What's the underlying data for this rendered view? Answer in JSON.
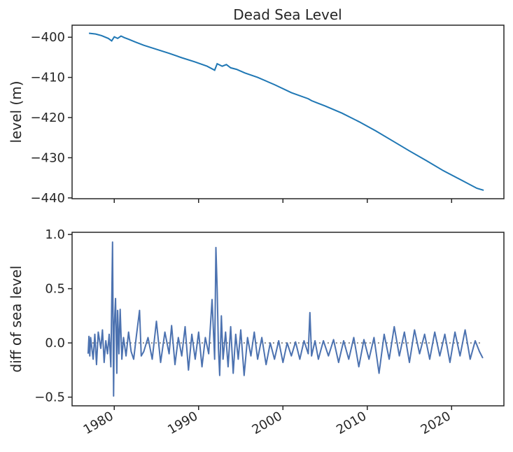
{
  "chart_data": [
    {
      "type": "line",
      "title": "Dead Sea Level",
      "xlabel": "",
      "ylabel": "level (m)",
      "xlim": [
        1975.0,
        2026.2
      ],
      "ylim": [
        -440.2,
        -397.0
      ],
      "yticks": [
        -440,
        -430,
        -420,
        -410,
        -400
      ],
      "grid": false,
      "color": "#1f77b4",
      "x": [
        1977.0,
        1977.8,
        1978.5,
        1979.3,
        1979.7,
        1980.0,
        1980.4,
        1980.8,
        1981.2,
        1981.7,
        1982.5,
        1983.5,
        1985.0,
        1986.5,
        1988.0,
        1989.5,
        1991.0,
        1991.9,
        1992.2,
        1992.8,
        1993.3,
        1993.8,
        1994.5,
        1995.5,
        1997.0,
        1999.0,
        2001.0,
        2003.0,
        2003.4,
        2004.0,
        2005.0,
        2007.0,
        2009.0,
        2011.0,
        2013.0,
        2015.0,
        2017.0,
        2019.0,
        2021.0,
        2023.0,
        2023.8
      ],
      "y": [
        -399.0,
        -399.2,
        -399.6,
        -400.3,
        -400.9,
        -399.9,
        -400.3,
        -399.7,
        -400.1,
        -400.5,
        -401.2,
        -402.0,
        -403.0,
        -404.0,
        -405.1,
        -406.1,
        -407.2,
        -408.2,
        -406.6,
        -407.2,
        -406.8,
        -407.6,
        -408.0,
        -408.9,
        -410.0,
        -411.8,
        -413.8,
        -415.3,
        -415.8,
        -416.3,
        -417.1,
        -418.9,
        -421.0,
        -423.3,
        -425.8,
        -428.3,
        -430.7,
        -433.2,
        -435.4,
        -437.6,
        -438.1
      ]
    },
    {
      "type": "line",
      "title": "",
      "xlabel": "",
      "ylabel": "diff of sea level",
      "xlim": [
        1975.0,
        2026.2
      ],
      "ylim": [
        -0.58,
        1.02
      ],
      "yticks": [
        -0.5,
        0.0,
        0.5,
        1.0
      ],
      "xticks": [
        "1980",
        "1990",
        "2000",
        "2010",
        "2020"
      ],
      "x_tick_values": [
        1980,
        1990,
        2000,
        2010,
        2020
      ],
      "grid": false,
      "color": "#4c72b0",
      "reference_line": {
        "y": 0.0,
        "style": "dotted",
        "color": "#666666"
      },
      "x": [
        1976.9,
        1977.0,
        1977.1,
        1977.2,
        1977.5,
        1977.7,
        1977.9,
        1978.1,
        1978.4,
        1978.6,
        1978.8,
        1979.0,
        1979.2,
        1979.4,
        1979.6,
        1979.8,
        1979.92,
        1980.0,
        1980.15,
        1980.3,
        1980.4,
        1980.55,
        1980.7,
        1980.9,
        1981.1,
        1981.4,
        1981.7,
        1982.0,
        1982.3,
        1982.6,
        1983.0,
        1983.2,
        1983.5,
        1984.0,
        1984.5,
        1985.0,
        1985.5,
        1986.0,
        1986.5,
        1986.8,
        1987.2,
        1987.6,
        1988.0,
        1988.4,
        1988.8,
        1989.2,
        1989.6,
        1990.0,
        1990.4,
        1990.8,
        1991.2,
        1991.6,
        1991.9,
        1992.05,
        1992.2,
        1992.35,
        1992.5,
        1992.7,
        1992.9,
        1993.2,
        1993.5,
        1993.8,
        1994.1,
        1994.4,
        1994.7,
        1995.0,
        1995.4,
        1995.8,
        1996.2,
        1996.6,
        1997.0,
        1997.5,
        1998.0,
        1998.5,
        1999.0,
        1999.5,
        2000.0,
        2000.5,
        2001.0,
        2001.5,
        2002.0,
        2002.5,
        2003.0,
        2003.2,
        2003.4,
        2003.8,
        2004.2,
        2004.8,
        2005.4,
        2006.0,
        2006.6,
        2007.2,
        2007.8,
        2008.4,
        2009.0,
        2009.6,
        2010.2,
        2010.8,
        2011.4,
        2012.0,
        2012.6,
        2013.2,
        2013.8,
        2014.4,
        2015.0,
        2015.6,
        2016.2,
        2016.8,
        2017.4,
        2018.0,
        2018.6,
        2019.2,
        2019.8,
        2020.4,
        2021.0,
        2021.6,
        2022.2,
        2022.8,
        2023.3,
        2023.7
      ],
      "y": [
        -0.1,
        0.06,
        -0.12,
        0.05,
        -0.15,
        0.08,
        -0.2,
        0.1,
        -0.05,
        0.12,
        -0.18,
        0.02,
        -0.1,
        0.08,
        -0.22,
        0.93,
        -0.49,
        0.15,
        0.41,
        -0.28,
        0.3,
        -0.1,
        0.31,
        -0.15,
        0.05,
        -0.12,
        0.1,
        -0.08,
        -0.15,
        0.05,
        0.3,
        -0.12,
        -0.08,
        0.05,
        -0.15,
        0.2,
        -0.18,
        0.1,
        -0.1,
        0.16,
        -0.2,
        0.05,
        -0.12,
        0.15,
        -0.25,
        0.08,
        -0.15,
        0.1,
        -0.22,
        0.05,
        -0.1,
        0.4,
        -0.15,
        0.88,
        0.5,
        -0.05,
        -0.3,
        0.25,
        -0.15,
        0.1,
        -0.22,
        0.15,
        -0.28,
        0.08,
        -0.15,
        0.12,
        -0.3,
        0.05,
        -0.12,
        0.1,
        -0.15,
        0.05,
        -0.2,
        0.0,
        -0.15,
        0.02,
        -0.18,
        0.0,
        -0.12,
        0.01,
        -0.15,
        0.02,
        -0.1,
        0.28,
        -0.12,
        0.02,
        -0.15,
        0.02,
        -0.12,
        0.03,
        -0.18,
        0.02,
        -0.15,
        0.05,
        -0.22,
        0.03,
        -0.15,
        0.05,
        -0.28,
        0.08,
        -0.15,
        0.15,
        -0.12,
        0.1,
        -0.18,
        0.12,
        -0.1,
        0.08,
        -0.15,
        0.1,
        -0.12,
        0.08,
        -0.18,
        0.1,
        -0.12,
        0.12,
        -0.15,
        0.02,
        -0.08,
        -0.14
      ]
    }
  ]
}
